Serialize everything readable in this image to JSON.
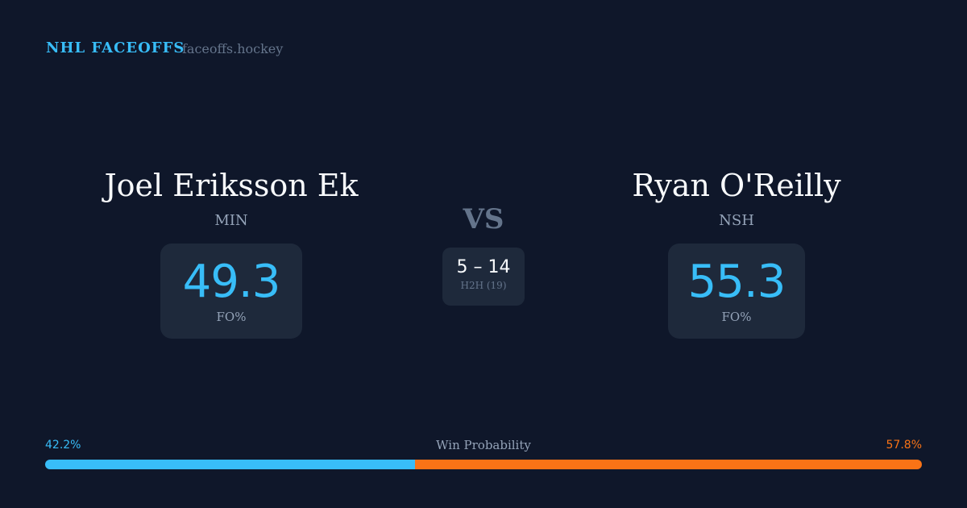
{
  "header": {
    "brand": "NHL FACEOFFS",
    "site": "faceoffs.hockey"
  },
  "left": {
    "name": "Joel Eriksson Ek",
    "team": "MIN",
    "fo_pct": "49.3",
    "fo_label": "FO%"
  },
  "right": {
    "name": "Ryan O'Reilly",
    "team": "NSH",
    "fo_pct": "55.3",
    "fo_label": "FO%"
  },
  "vs": "VS",
  "h2h": {
    "score": "5 – 14",
    "label": "H2H (19)"
  },
  "win_probability": {
    "label": "Win Probability",
    "left_text": "42.2%",
    "right_text": "57.8%",
    "left": 42.2,
    "right": 57.8,
    "left_color": "#38bdf8",
    "right_color": "#f97316"
  }
}
